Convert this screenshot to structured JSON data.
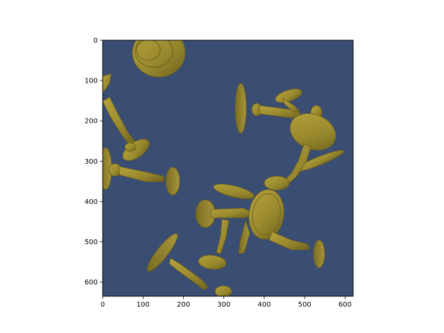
{
  "figure": {
    "background_color": "#3a4d72",
    "object_color": "#9a8a2e",
    "subject": "pawn-pieces",
    "x_axis": {
      "range": [
        0,
        620
      ],
      "ticks": [
        "0",
        "100",
        "200",
        "300",
        "400",
        "500",
        "600"
      ],
      "tick_values": [
        0,
        100,
        200,
        300,
        400,
        500,
        600
      ]
    },
    "y_axis": {
      "range": [
        0,
        635
      ],
      "inverted": true,
      "ticks": [
        "0",
        "100",
        "200",
        "300",
        "400",
        "500",
        "600"
      ],
      "tick_values": [
        0,
        100,
        200,
        300,
        400,
        500,
        600
      ]
    }
  }
}
